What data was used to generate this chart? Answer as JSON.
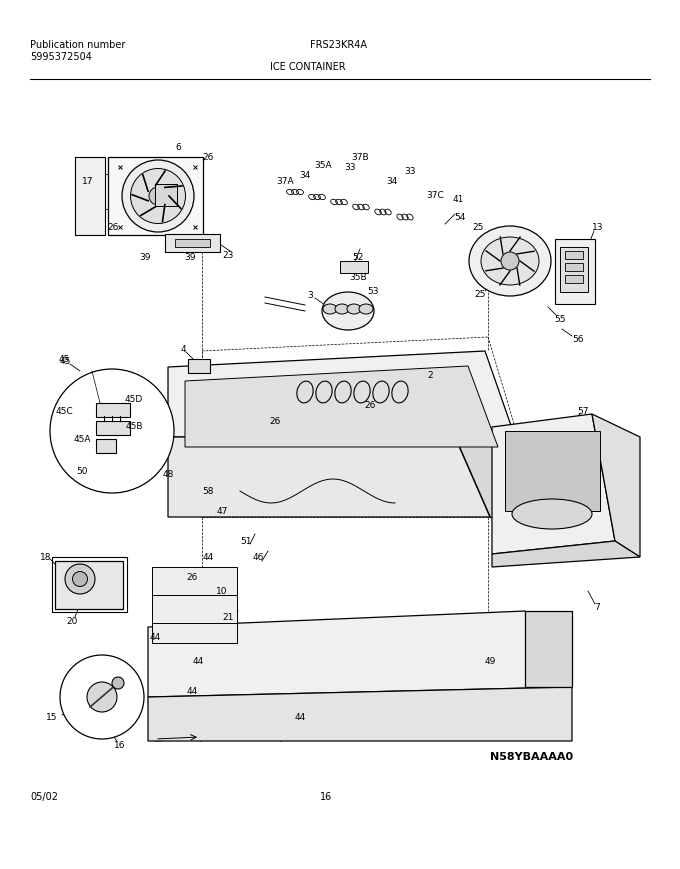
{
  "title_model": "FRS23KR4A",
  "title_section": "ICE CONTAINER",
  "pub_label": "Publication number",
  "pub_number": "5995372504",
  "date": "05/02",
  "page": "16",
  "diagram_id": "N58YBAAAA0",
  "bg_color": "#ffffff",
  "line_color": "#000000",
  "fig_width": 6.8,
  "fig_height": 8.7,
  "dpi": 100
}
